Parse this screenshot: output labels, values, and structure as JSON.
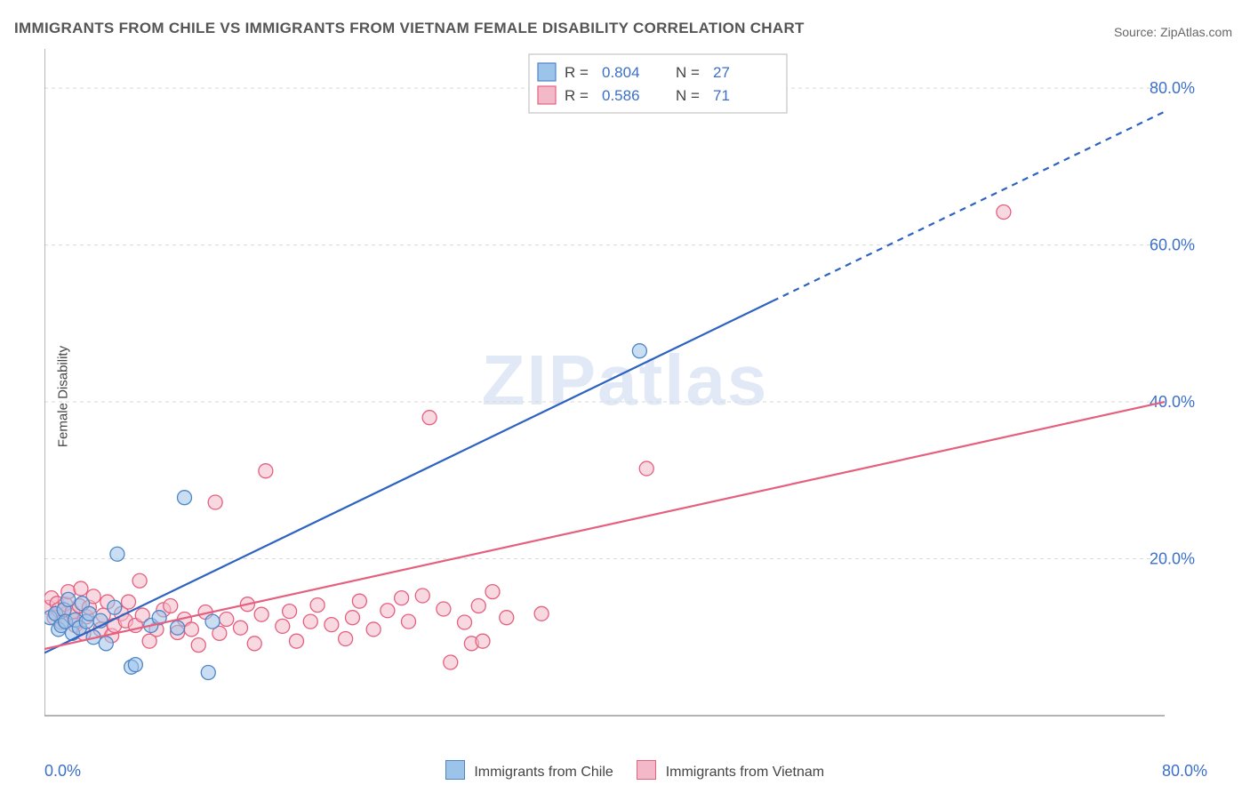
{
  "title": "IMMIGRANTS FROM CHILE VS IMMIGRANTS FROM VIETNAM FEMALE DISABILITY CORRELATION CHART",
  "source": "Source: ZipAtlas.com",
  "ylabel": "Female Disability",
  "watermark": "ZIPatlas",
  "chart": {
    "type": "scatter",
    "background_color": "#ffffff",
    "grid_color": "#d9d9d9",
    "axis_color": "#888888",
    "tick_label_color": "#3b6fc9",
    "tick_fontsize": 18,
    "xlim": [
      0,
      80
    ],
    "ylim": [
      0,
      85
    ],
    "x_min_label": "0.0%",
    "x_max_label": "80.0%",
    "y_ticks": [
      20,
      40,
      60,
      80
    ],
    "y_tick_labels": [
      "20.0%",
      "40.0%",
      "60.0%",
      "80.0%"
    ],
    "series": [
      {
        "name": "Immigrants from Chile",
        "marker_fill": "#9cc3ea",
        "marker_stroke": "#4f86c6",
        "marker_fill_opacity": 0.55,
        "marker_r": 8,
        "line_color": "#2e63c2",
        "line_width": 2.2,
        "R": "0.804",
        "N": "27",
        "trend": {
          "x1": 0,
          "y1": 8,
          "x2": 80,
          "y2": 77,
          "solid_until_x": 52
        },
        "points": [
          [
            0.4,
            12.5
          ],
          [
            0.8,
            13.0
          ],
          [
            1.0,
            11.0
          ],
          [
            1.2,
            11.5
          ],
          [
            1.4,
            13.5
          ],
          [
            1.5,
            12.0
          ],
          [
            1.7,
            14.8
          ],
          [
            2.0,
            10.5
          ],
          [
            2.2,
            12.2
          ],
          [
            2.5,
            11.2
          ],
          [
            2.7,
            14.3
          ],
          [
            3.0,
            12.0
          ],
          [
            3.2,
            13.0
          ],
          [
            3.5,
            10.0
          ],
          [
            4.0,
            12.1
          ],
          [
            4.4,
            9.2
          ],
          [
            5.0,
            13.8
          ],
          [
            5.2,
            20.6
          ],
          [
            6.2,
            6.2
          ],
          [
            6.5,
            6.5
          ],
          [
            7.6,
            11.5
          ],
          [
            8.2,
            12.5
          ],
          [
            9.5,
            11.2
          ],
          [
            10.0,
            27.8
          ],
          [
            11.7,
            5.5
          ],
          [
            12.0,
            12.0
          ],
          [
            42.5,
            46.5
          ]
        ]
      },
      {
        "name": "Immigrants from Vietnam",
        "marker_fill": "#f4b9c8",
        "marker_stroke": "#e5607f",
        "marker_fill_opacity": 0.55,
        "marker_r": 8,
        "line_color": "#e5607f",
        "line_width": 2.2,
        "R": "0.586",
        "N": "71",
        "trend": {
          "x1": 0,
          "y1": 8.5,
          "x2": 80,
          "y2": 40,
          "solid_until_x": 80
        },
        "points": [
          [
            0.3,
            13.8
          ],
          [
            0.5,
            15.0
          ],
          [
            0.7,
            12.5
          ],
          [
            0.9,
            14.3
          ],
          [
            1.0,
            13.5
          ],
          [
            1.2,
            11.9
          ],
          [
            1.5,
            14.2
          ],
          [
            1.7,
            15.8
          ],
          [
            1.9,
            12.7
          ],
          [
            2.0,
            13.2
          ],
          [
            2.2,
            11.5
          ],
          [
            2.5,
            14.0
          ],
          [
            2.8,
            10.5
          ],
          [
            3.0,
            12.6
          ],
          [
            3.2,
            13.8
          ],
          [
            3.5,
            15.2
          ],
          [
            4.0,
            11.0
          ],
          [
            4.2,
            12.8
          ],
          [
            4.5,
            14.5
          ],
          [
            4.8,
            10.2
          ],
          [
            5.0,
            11.5
          ],
          [
            5.5,
            13.0
          ],
          [
            5.8,
            12.1
          ],
          [
            6.0,
            14.5
          ],
          [
            6.5,
            11.5
          ],
          [
            6.8,
            17.2
          ],
          [
            7.0,
            12.8
          ],
          [
            7.5,
            9.5
          ],
          [
            8.0,
            11.0
          ],
          [
            8.5,
            13.5
          ],
          [
            9.0,
            14.0
          ],
          [
            9.5,
            10.6
          ],
          [
            10.0,
            12.3
          ],
          [
            10.5,
            11.0
          ],
          [
            11.0,
            9.0
          ],
          [
            11.5,
            13.2
          ],
          [
            12.2,
            27.2
          ],
          [
            12.5,
            10.5
          ],
          [
            13.0,
            12.3
          ],
          [
            14.0,
            11.2
          ],
          [
            14.5,
            14.2
          ],
          [
            15.0,
            9.2
          ],
          [
            15.5,
            12.9
          ],
          [
            15.8,
            31.2
          ],
          [
            17.0,
            11.4
          ],
          [
            17.5,
            13.3
          ],
          [
            18.0,
            9.5
          ],
          [
            19.0,
            12.0
          ],
          [
            19.5,
            14.1
          ],
          [
            20.5,
            11.6
          ],
          [
            21.5,
            9.8
          ],
          [
            22.0,
            12.5
          ],
          [
            22.5,
            14.6
          ],
          [
            23.5,
            11.0
          ],
          [
            24.5,
            13.4
          ],
          [
            25.5,
            15.0
          ],
          [
            26.0,
            12.0
          ],
          [
            27.0,
            15.3
          ],
          [
            27.5,
            38.0
          ],
          [
            28.5,
            13.6
          ],
          [
            29.0,
            6.8
          ],
          [
            30.0,
            11.9
          ],
          [
            30.5,
            9.2
          ],
          [
            31.0,
            14.0
          ],
          [
            31.3,
            9.5
          ],
          [
            32.0,
            15.8
          ],
          [
            33.0,
            12.5
          ],
          [
            35.5,
            13.0
          ],
          [
            43.0,
            31.5
          ],
          [
            68.5,
            64.2
          ],
          [
            2.6,
            16.2
          ]
        ]
      }
    ],
    "top_legend": {
      "box_stroke": "#b8b8b8",
      "box_fill": "#ffffff",
      "label_color": "#444444",
      "value_color": "#3b6fc9",
      "fontsize": 17
    },
    "bottom_legend": {
      "fontsize": 16,
      "label_color": "#444444"
    }
  }
}
